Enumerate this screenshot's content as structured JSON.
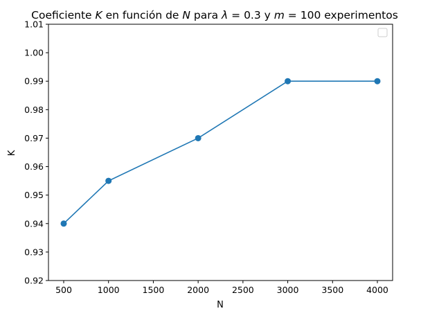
{
  "chart_data": {
    "type": "line",
    "title_parts": [
      {
        "text": "Coeficiente ",
        "italic": false
      },
      {
        "text": "K",
        "italic": true
      },
      {
        "text": " en función de ",
        "italic": false
      },
      {
        "text": "N",
        "italic": true
      },
      {
        "text": " para ",
        "italic": false
      },
      {
        "text": "λ",
        "italic": true
      },
      {
        "text": " = 0.3 y ",
        "italic": false
      },
      {
        "text": "m",
        "italic": true
      },
      {
        "text": " = 100 experimentos",
        "italic": false
      }
    ],
    "xlabel": "N",
    "ylabel": "K",
    "xlim": [
      330,
      4170
    ],
    "ylim": [
      0.92,
      1.01
    ],
    "x_ticks": [
      500,
      1000,
      1500,
      2000,
      2500,
      3000,
      3500,
      4000
    ],
    "y_ticks": [
      0.92,
      0.93,
      0.94,
      0.95,
      0.96,
      0.97,
      0.98,
      0.99,
      1.0,
      1.01
    ],
    "y_tick_labels": [
      "0.92",
      "0.93",
      "0.94",
      "0.95",
      "0.96",
      "0.97",
      "0.98",
      "0.99",
      "1.00",
      "1.01"
    ],
    "series": [
      {
        "x": [
          500,
          1000,
          2000,
          3000,
          4000
        ],
        "values": [
          0.94,
          0.955,
          0.97,
          0.99,
          0.99
        ],
        "color": "#1f77b4",
        "marker": "circle"
      }
    ],
    "legend": {
      "position": "top-right",
      "entries": []
    },
    "grid": false
  }
}
